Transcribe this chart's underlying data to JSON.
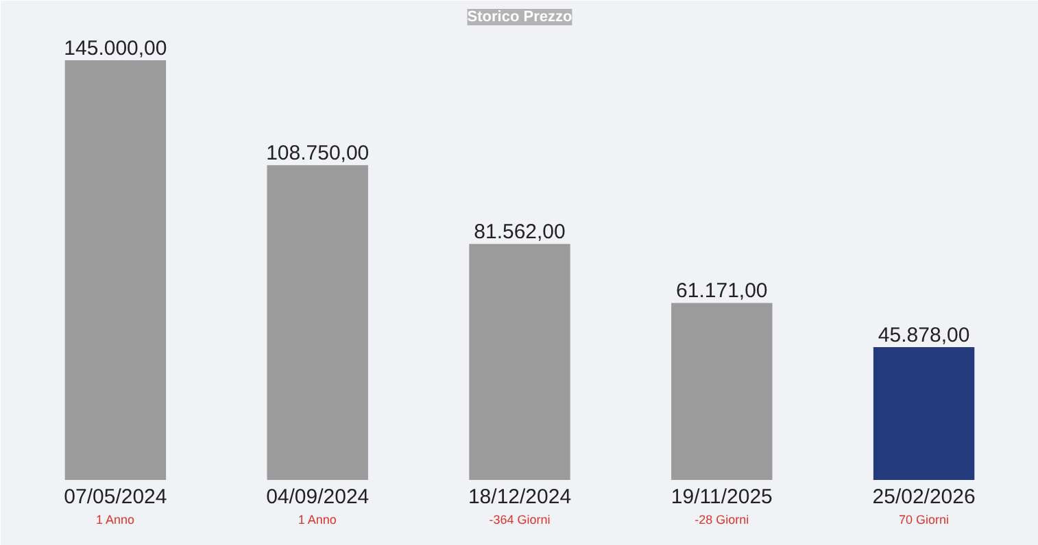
{
  "chart_data": {
    "type": "bar",
    "title": "Storico Prezzo",
    "categories": [
      "07/05/2024",
      "04/09/2024",
      "18/12/2024",
      "19/11/2025",
      "25/02/2026"
    ],
    "values": [
      145000,
      108750,
      81562,
      61171,
      45878
    ],
    "colors": [
      "#9b9b9b",
      "#9b9b9b",
      "#9b9b9b",
      "#9b9b9b",
      "#233a7d"
    ],
    "value_labels": [
      "145.000,00",
      "108.750,00",
      "81.562,00",
      "61.171,00",
      "45.878,00"
    ],
    "tick_labels": false,
    "annotations": [
      "1 Anno",
      "1 Anno",
      "-364 Giorni",
      "-28 Giorni",
      "70 Giorni"
    ]
  }
}
